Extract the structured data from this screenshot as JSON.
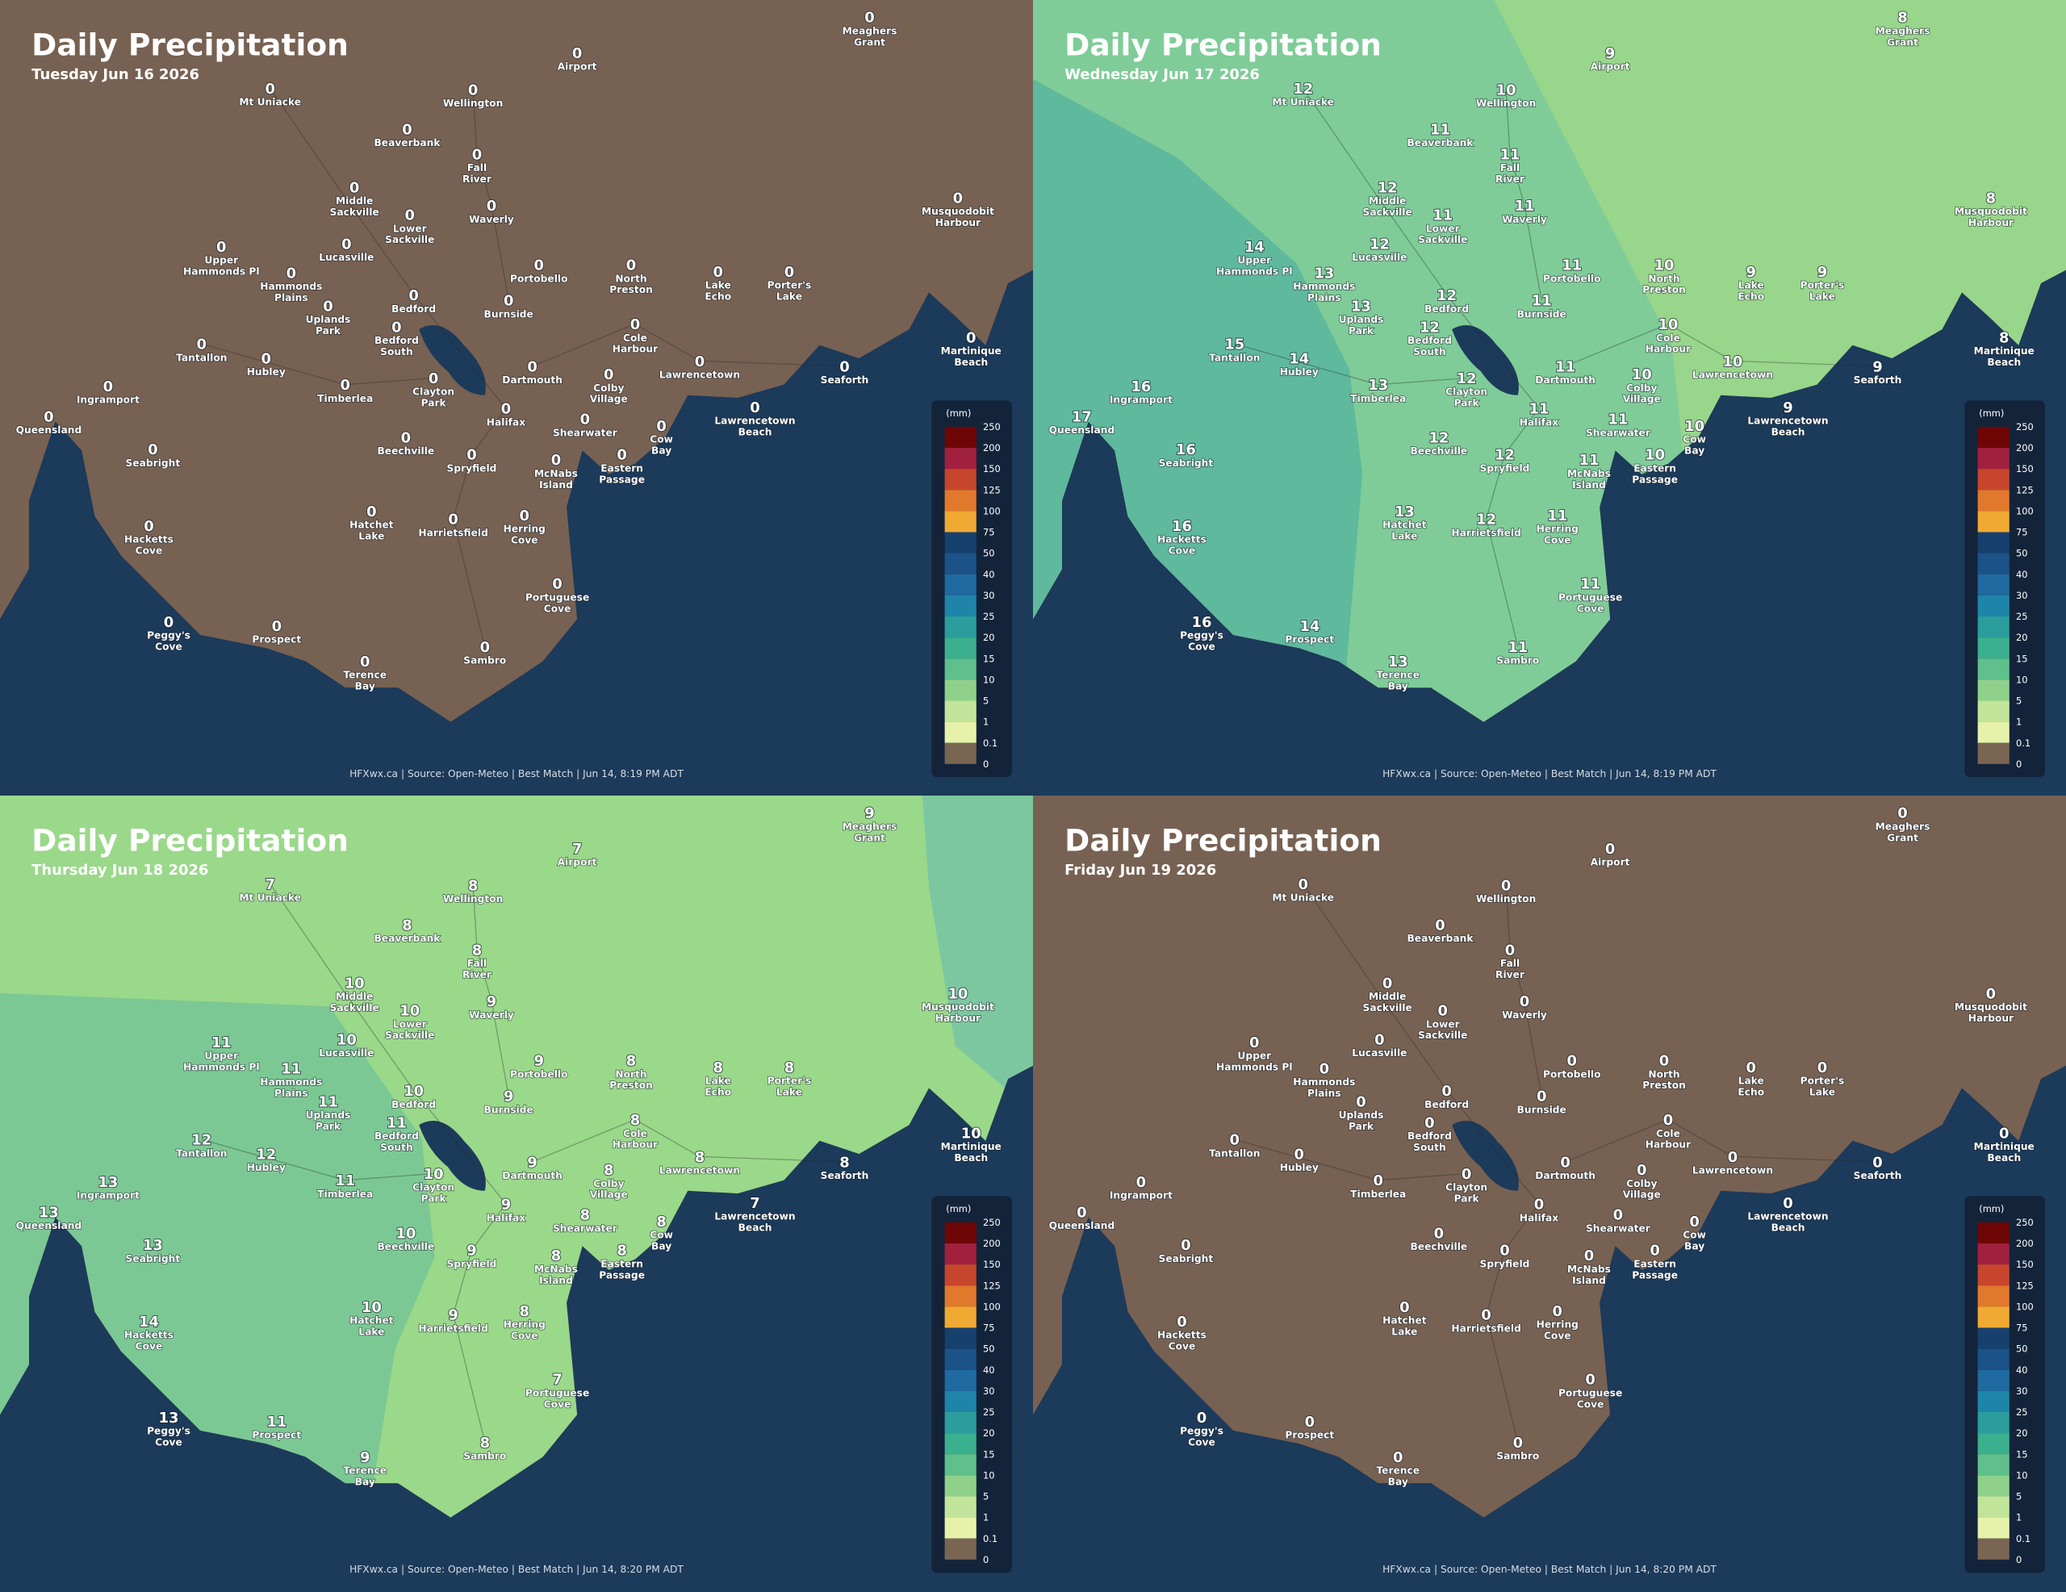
{
  "places": [
    [
      "Meaghers",
      "Grant"
    ],
    [
      "Airport"
    ],
    [
      "Mt Uniacke"
    ],
    [
      "Wellington"
    ],
    [
      "Beaverbank"
    ],
    [
      "Fall",
      "River"
    ],
    [
      "Middle",
      "Sackville"
    ],
    [
      "Waverly"
    ],
    [
      "Lower",
      "Sackville"
    ],
    [
      "Upper",
      "Hammonds Pl"
    ],
    [
      "Lucasville"
    ],
    [
      "Hammonds",
      "Plains"
    ],
    [
      "Portobello"
    ],
    [
      "North",
      "Preston"
    ],
    [
      "Lake",
      "Echo"
    ],
    [
      "Porter's",
      "Lake"
    ],
    [
      "Musquodobit",
      "Harbour"
    ],
    [
      "Bedford"
    ],
    [
      "Uplands",
      "Park"
    ],
    [
      "Burnside"
    ],
    [
      "Bedford",
      "South"
    ],
    [
      "Cole",
      "Harbour"
    ],
    [
      "Martinique",
      "Beach"
    ],
    [
      "Tantallon"
    ],
    [
      "Hubley"
    ],
    [
      "Lawrencetown"
    ],
    [
      "Dartmouth"
    ],
    [
      "Seaforth"
    ],
    [
      "Colby",
      "Village"
    ],
    [
      "Ingramport"
    ],
    [
      "Timberlea"
    ],
    [
      "Clayton",
      "Park"
    ],
    [
      "Halifax"
    ],
    [
      "Lawrencetown",
      "Beach"
    ],
    [
      "Queensland"
    ],
    [
      "Shearwater"
    ],
    [
      "Cow",
      "Bay"
    ],
    [
      "Beechville"
    ],
    [
      "Seabright"
    ],
    [
      "McNabs",
      "Island"
    ],
    [
      "Spryfield"
    ],
    [
      "Eastern",
      "Passage"
    ],
    [
      "Hatchet",
      "Lake"
    ],
    [
      "Harrietsfield"
    ],
    [
      "Herring",
      "Cove"
    ],
    [
      "Hacketts",
      "Cove"
    ],
    [
      "Portuguese",
      "Cove"
    ],
    [
      "Peggy's",
      "Cove"
    ],
    [
      "Prospect"
    ],
    [
      "Terence",
      "Bay"
    ],
    [
      "Sambro"
    ]
  ],
  "legend": {
    "unit": "(mm)",
    "labels": [
      250,
      200,
      150,
      125,
      100,
      75,
      50,
      40,
      30,
      25,
      20,
      15,
      10,
      5,
      1,
      0.1,
      0
    ],
    "colors": [
      "#6e0606",
      "#a1203e",
      "#c8452d",
      "#e2782b",
      "#f0a932",
      "#16406e",
      "#1b5288",
      "#1f6aa0",
      "#1f85a8",
      "#2a9d9c",
      "#3bb08e",
      "#5fc08c",
      "#8fd18a",
      "#c2e49a",
      "#e6f2aa",
      "#7a6553"
    ]
  },
  "panels": [
    {
      "title": "Daily Precipitation",
      "subtitle": "Tuesday Jun 16 2026",
      "footer": "HFXwx.ca | Source: Open-Meteo | Best Match | Jun 14, 8:19 PM ADT",
      "values": [
        0,
        0,
        0,
        0,
        0,
        0,
        0,
        0,
        0,
        0,
        0,
        0,
        0,
        0,
        0,
        0,
        0,
        0,
        0,
        0,
        0,
        0,
        0,
        0,
        0,
        0,
        0,
        0,
        0,
        0,
        0,
        0,
        0,
        0,
        0,
        0,
        0,
        0,
        0,
        0,
        0,
        0,
        0,
        0,
        0,
        0,
        0,
        0,
        0,
        0,
        0
      ]
    },
    {
      "title": "Daily Precipitation",
      "subtitle": "Wednesday Jun 17 2026",
      "footer": "HFXwx.ca | Source: Open-Meteo | Best Match | Jun 14, 8:19 PM ADT",
      "values": [
        8,
        9,
        12,
        10,
        11,
        11,
        12,
        11,
        11,
        14,
        12,
        13,
        11,
        10,
        9,
        9,
        8,
        12,
        13,
        11,
        12,
        10,
        8,
        15,
        14,
        10,
        11,
        9,
        10,
        16,
        13,
        12,
        11,
        9,
        17,
        11,
        10,
        12,
        16,
        11,
        12,
        10,
        13,
        12,
        11,
        16,
        11,
        16,
        14,
        13,
        11
      ]
    },
    {
      "title": "Daily Precipitation",
      "subtitle": "Thursday Jun 18 2026",
      "footer": "HFXwx.ca | Source: Open-Meteo | Best Match | Jun 14, 8:20 PM ADT",
      "values": [
        9,
        7,
        7,
        8,
        8,
        8,
        10,
        9,
        10,
        11,
        10,
        11,
        9,
        8,
        8,
        8,
        10,
        10,
        11,
        9,
        11,
        8,
        10,
        12,
        12,
        8,
        9,
        8,
        8,
        13,
        11,
        10,
        9,
        7,
        13,
        8,
        8,
        10,
        13,
        8,
        9,
        8,
        10,
        9,
        8,
        14,
        7,
        13,
        11,
        9,
        8
      ]
    },
    {
      "title": "Daily Precipitation",
      "subtitle": "Friday Jun 19 2026",
      "footer": "HFXwx.ca | Source: Open-Meteo | Best Match | Jun 14, 8:20 PM ADT",
      "values": [
        0,
        0,
        0,
        0,
        0,
        0,
        0,
        0,
        0,
        0,
        0,
        0,
        0,
        0,
        0,
        0,
        0,
        0,
        0,
        0,
        0,
        0,
        0,
        0,
        0,
        0,
        0,
        0,
        0,
        0,
        0,
        0,
        0,
        0,
        0,
        0,
        0,
        0,
        0,
        0,
        0,
        0,
        0,
        0,
        0,
        0,
        0,
        0,
        0,
        0,
        0
      ]
    }
  ]
}
